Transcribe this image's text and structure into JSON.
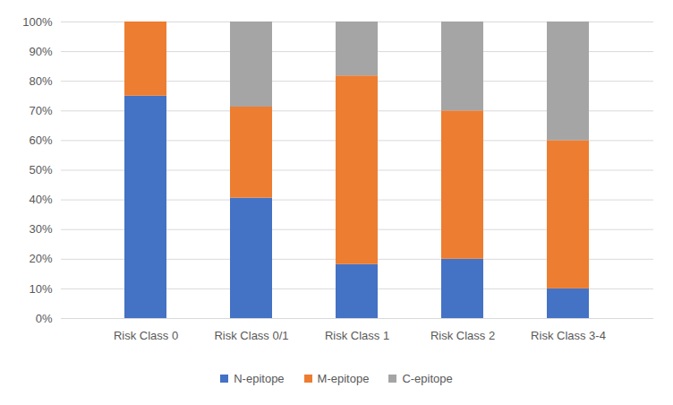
{
  "chart_data": {
    "type": "bar",
    "stacked": true,
    "categories": [
      "Risk Class 0",
      "Risk Class 0/1",
      "Risk Class 1",
      "Risk Class 2",
      "Risk Class 3-4"
    ],
    "series": [
      {
        "name": "N-epitope",
        "color": "#4472c4",
        "values": [
          75,
          40.6,
          18.2,
          20,
          10
        ]
      },
      {
        "name": "M-epitope",
        "color": "#ed7d31",
        "values": [
          25,
          30.7,
          63.6,
          50,
          50
        ]
      },
      {
        "name": "C-epitope",
        "color": "#a5a5a5",
        "values": [
          0,
          28.7,
          18.2,
          30,
          40
        ]
      }
    ],
    "ylim": [
      0,
      100
    ],
    "yticks": [
      {
        "value": 0,
        "label": "0%"
      },
      {
        "value": 10,
        "label": "10%"
      },
      {
        "value": 20,
        "label": "20%"
      },
      {
        "value": 30,
        "label": "30%"
      },
      {
        "value": 40,
        "label": "40%"
      },
      {
        "value": 50,
        "label": "50%"
      },
      {
        "value": 60,
        "label": "60%"
      },
      {
        "value": 70,
        "label": "70%"
      },
      {
        "value": 80,
        "label": "80%"
      },
      {
        "value": 90,
        "label": "90%"
      },
      {
        "value": 100,
        "label": "100%"
      }
    ],
    "grid": true,
    "legend": "bottom"
  }
}
